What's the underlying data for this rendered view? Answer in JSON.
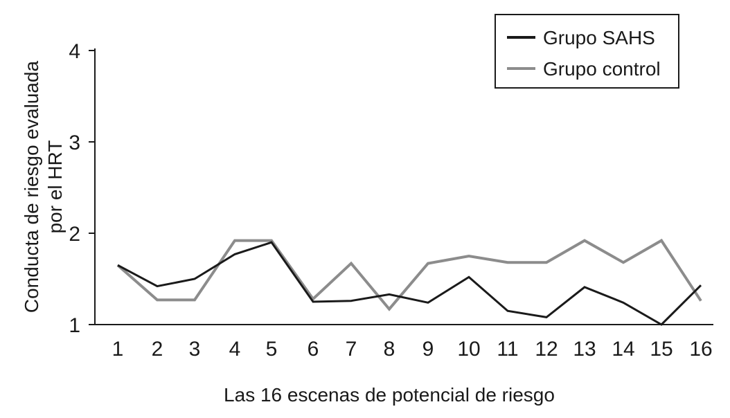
{
  "chart_data": {
    "type": "line",
    "title": "",
    "xlabel": "Las 16 escenas de potencial de riesgo",
    "ylabel_lines": [
      "Conducta de riesgo evaluada",
      "por el HRT"
    ],
    "ylim": [
      1,
      4
    ],
    "yticks": [
      "1",
      "2",
      "3",
      "4"
    ],
    "categories": [
      "1",
      "2",
      "3",
      "4",
      "5",
      "6",
      "7",
      "8",
      "9",
      "10",
      "11",
      "12",
      "13",
      "14",
      "15",
      "16"
    ],
    "grid": false,
    "legend_position": "top-right",
    "series": [
      {
        "name": "Grupo SAHS",
        "color": "#1a1a1a",
        "values": [
          1.65,
          1.42,
          1.5,
          1.77,
          1.9,
          1.25,
          1.26,
          1.33,
          1.24,
          1.52,
          1.15,
          1.08,
          1.41,
          1.24,
          1.0,
          1.43
        ]
      },
      {
        "name": "Grupo control",
        "color": "#8c8c8c",
        "values": [
          1.65,
          1.27,
          1.27,
          1.92,
          1.92,
          1.28,
          1.67,
          1.17,
          1.67,
          1.75,
          1.68,
          1.68,
          1.92,
          1.68,
          1.92,
          1.26
        ]
      }
    ]
  }
}
